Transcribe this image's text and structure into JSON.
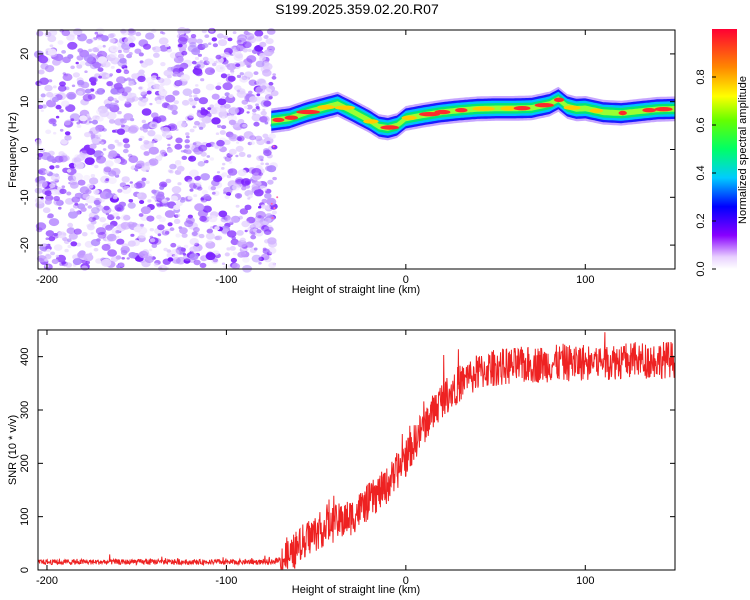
{
  "figure": {
    "title": "S199.2025.359.02.20.R07"
  },
  "chart_data": [
    {
      "type": "heatmap",
      "name": "spectrogram",
      "title": "",
      "xlabel": "Height of straight line (km)",
      "ylabel": "Frequency (Hz)",
      "xlim": [
        -205,
        150
      ],
      "ylim": [
        -25,
        25
      ],
      "xticks": [
        -200,
        -100,
        0,
        100
      ],
      "yticks": [
        -20,
        -10,
        0,
        10,
        20
      ],
      "xtick_labels": [
        "-200",
        "-100",
        "0",
        "100"
      ],
      "ytick_labels": [
        "-20",
        "-10",
        "0",
        "10",
        "20"
      ],
      "noise_region_x": [
        -205,
        -73
      ],
      "ridge": {
        "x": [
          -75,
          -65,
          -55,
          -45,
          -38,
          -30,
          -20,
          -15,
          -10,
          -5,
          0,
          10,
          20,
          30,
          40,
          50,
          60,
          70,
          80,
          85,
          90,
          95,
          100,
          110,
          120,
          130,
          140,
          150
        ],
        "freq": [
          6.0,
          6.5,
          7.8,
          8.8,
          9.5,
          8.0,
          6.0,
          4.8,
          4.5,
          5.0,
          6.5,
          7.2,
          7.8,
          8.2,
          8.5,
          8.6,
          8.6,
          8.7,
          9.5,
          10.5,
          9.0,
          8.5,
          8.6,
          7.8,
          7.6,
          8.0,
          8.4,
          8.5
        ]
      },
      "colorbar": {
        "label": "Normalized spectral amplitude",
        "range": [
          0.0,
          1.0
        ],
        "ticks": [
          0.0,
          0.2,
          0.4,
          0.6,
          0.8
        ],
        "tick_labels": [
          "0.0",
          "0.2",
          "0.4",
          "0.6",
          "0.8"
        ]
      }
    },
    {
      "type": "line",
      "name": "snr",
      "title": "",
      "xlabel": "Height of straight line (km)",
      "ylabel": "SNR (10 * v/v)",
      "xlim": [
        -205,
        150
      ],
      "ylim": [
        0,
        450
      ],
      "xticks": [
        -200,
        -100,
        0,
        100
      ],
      "yticks": [
        0,
        100,
        200,
        300,
        400
      ],
      "xtick_labels": [
        "-200",
        "-100",
        "0",
        "100"
      ],
      "ytick_labels": [
        "0",
        "100",
        "200",
        "300",
        "400"
      ],
      "color": "#ee2222",
      "trend": {
        "x": [
          -205,
          -100,
          -75,
          -65,
          -55,
          -45,
          -30,
          -20,
          -10,
          0,
          10,
          20,
          30,
          40,
          50,
          70,
          100,
          150
        ],
        "y": [
          15,
          15,
          15,
          25,
          60,
          80,
          100,
          130,
          160,
          210,
          270,
          320,
          350,
          370,
          380,
          385,
          390,
          395
        ]
      },
      "noise_amplitude": [
        10,
        70
      ]
    }
  ]
}
